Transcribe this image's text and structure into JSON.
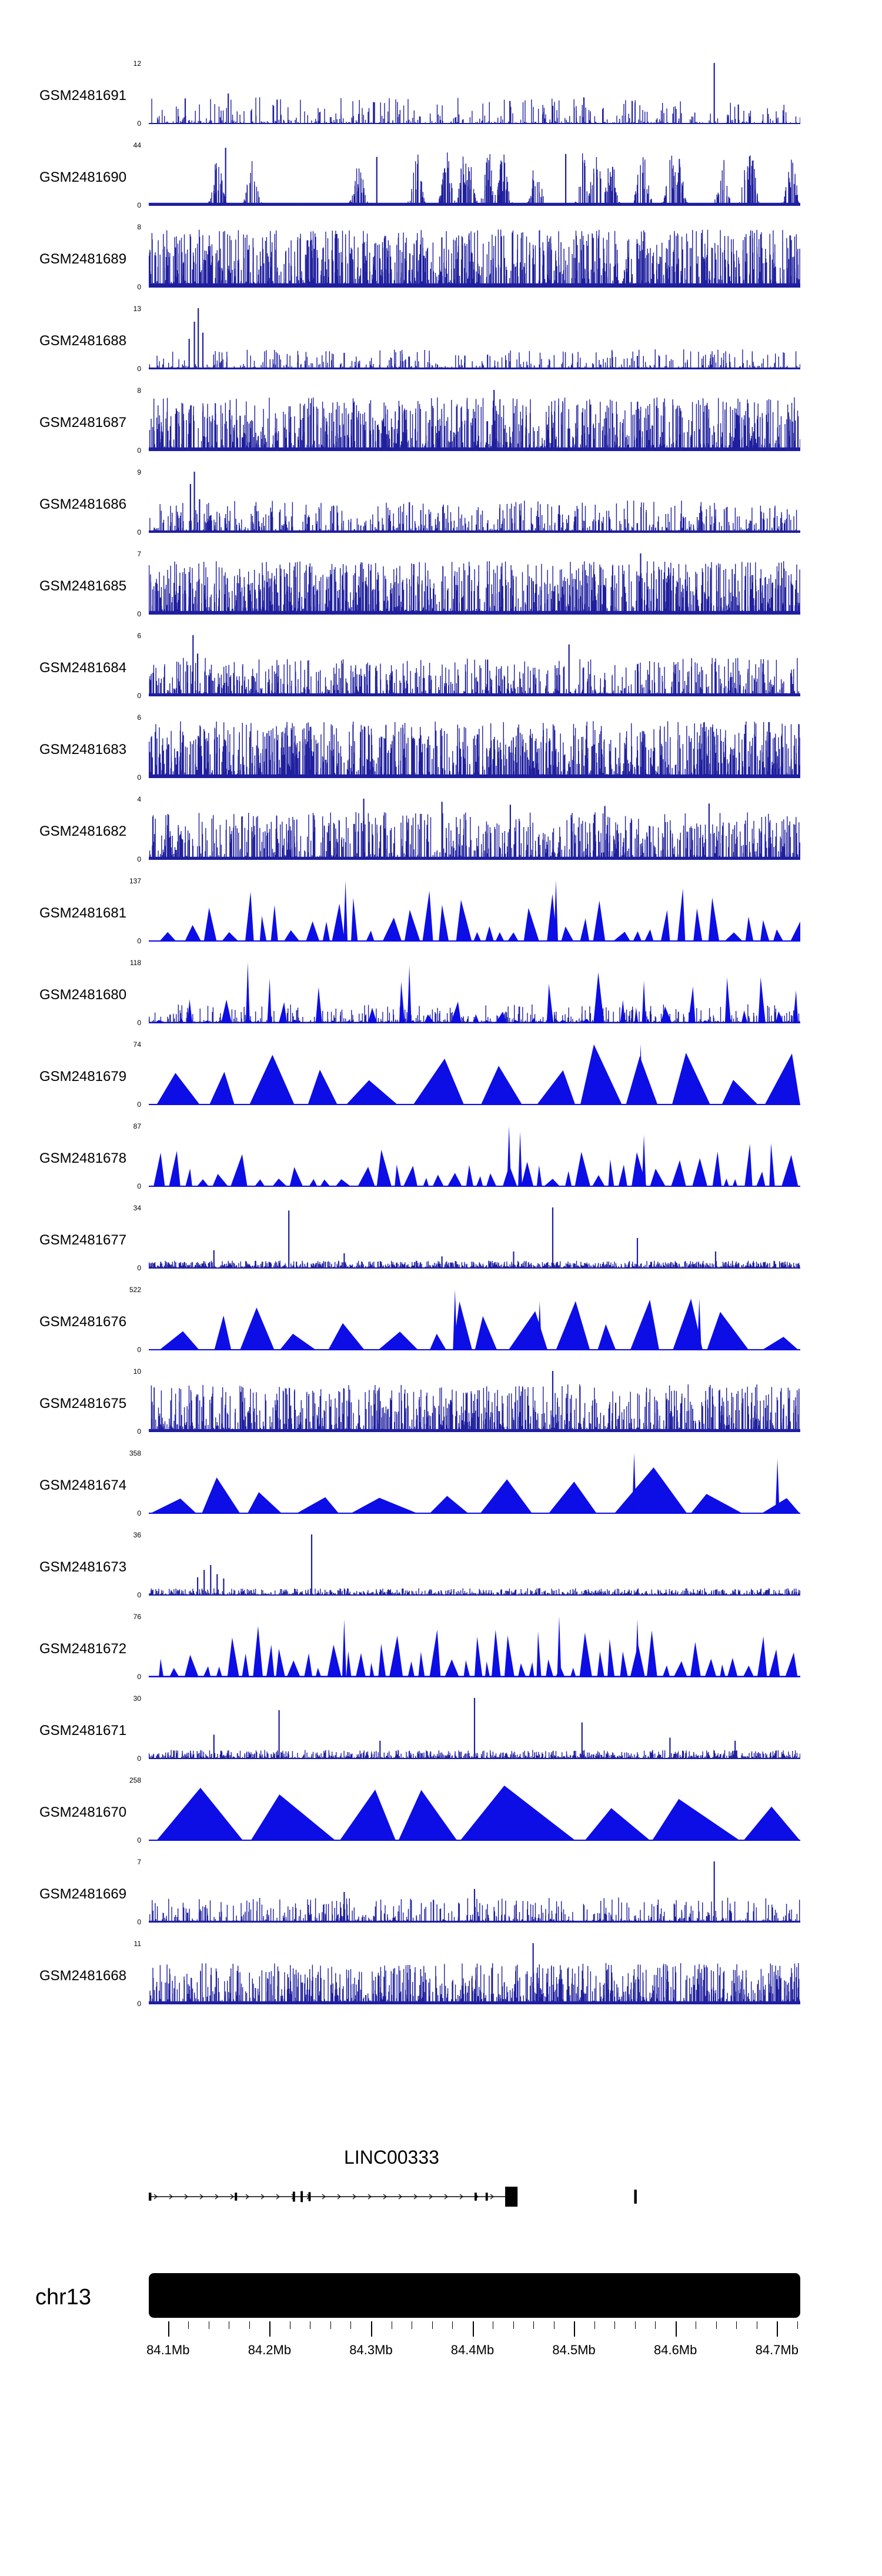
{
  "chart_data": {
    "type": "area",
    "description": "Genome-browser read-coverage tracks for 24 GEO samples over chr13 84.08-84.72 Mb, with LINC00333 gene model and chr13 ideogram",
    "region": {
      "chromosome": "chr13",
      "start_mb": 84.081,
      "end_mb": 84.723
    },
    "colors": {
      "bars": "#1f1f9e",
      "peaks": "#0d0de6",
      "gene": "#000000",
      "ideogram": "#000000"
    },
    "tracks": [
      {
        "label": "GSM2481691",
        "ymax": "12",
        "ymin": "0",
        "seed": 101,
        "base": 0.018,
        "bars": {
          "n": 430,
          "pow": 3.2,
          "hmax": 0.42
        },
        "spikes": [
          [
            0.056,
            0.42
          ],
          [
            0.122,
            0.5
          ],
          [
            0.197,
            0.4
          ],
          [
            0.345,
            0.36
          ],
          [
            0.62,
            0.3
          ],
          [
            0.742,
            0.38
          ],
          [
            0.868,
            1.0
          ],
          [
            0.905,
            0.32
          ]
        ]
      },
      {
        "label": "GSM2481690",
        "ymax": "44",
        "ymin": "0",
        "seed": 102,
        "base": 0.05,
        "cluster": {
          "n": 950,
          "k": 26,
          "w": 9,
          "hmax": 0.88
        },
        "spikes": [
          [
            0.118,
            0.95
          ],
          [
            0.35,
            0.8
          ],
          [
            0.64,
            0.85
          ]
        ]
      },
      {
        "label": "GSM2481689",
        "ymax": "8",
        "ymin": "0",
        "seed": 103,
        "base": 0.07,
        "bars": {
          "n": 1250,
          "pow": 1.6,
          "hmax": 0.92
        },
        "spikes": []
      },
      {
        "label": "GSM2481688",
        "ymax": "13",
        "ymin": "0",
        "seed": 104,
        "base": 0.03,
        "bars": {
          "n": 520,
          "pow": 3.0,
          "hmax": 0.3
        },
        "spikes": [
          [
            0.062,
            0.5
          ],
          [
            0.07,
            0.78
          ],
          [
            0.076,
            1.0
          ],
          [
            0.083,
            0.6
          ],
          [
            0.3,
            0.27
          ],
          [
            0.52,
            0.24
          ],
          [
            0.75,
            0.22
          ]
        ]
      },
      {
        "label": "GSM2481687",
        "ymax": "8",
        "ymin": "0",
        "seed": 105,
        "base": 0.06,
        "bars": {
          "n": 1150,
          "pow": 1.8,
          "hmax": 0.85
        },
        "spikes": [
          [
            0.53,
            1.0
          ]
        ]
      },
      {
        "label": "GSM2481686",
        "ymax": "9",
        "ymin": "0",
        "seed": 106,
        "base": 0.04,
        "bars": {
          "n": 760,
          "pow": 2.6,
          "hmax": 0.5
        },
        "spikes": [
          [
            0.064,
            0.8
          ],
          [
            0.07,
            1.0
          ],
          [
            0.078,
            0.55
          ],
          [
            0.4,
            0.5
          ],
          [
            0.63,
            0.45
          ]
        ]
      },
      {
        "label": "GSM2481685",
        "ymax": "7",
        "ymin": "0",
        "seed": 107,
        "base": 0.06,
        "bars": {
          "n": 1250,
          "pow": 1.7,
          "hmax": 0.85
        },
        "spikes": [
          [
            0.755,
            1.0
          ]
        ]
      },
      {
        "label": "GSM2481684",
        "ymax": "6",
        "ymin": "0",
        "seed": 108,
        "base": 0.05,
        "bars": {
          "n": 860,
          "pow": 2.2,
          "hmax": 0.6
        },
        "spikes": [
          [
            0.068,
            1.0
          ],
          [
            0.075,
            0.7
          ],
          [
            0.52,
            0.6
          ],
          [
            0.645,
            0.85
          ]
        ]
      },
      {
        "label": "GSM2481683",
        "ymax": "6",
        "ymin": "0",
        "seed": 109,
        "base": 0.06,
        "bars": {
          "n": 1250,
          "pow": 1.6,
          "hmax": 0.9
        },
        "spikes": []
      },
      {
        "label": "GSM2481682",
        "ymax": "4",
        "ymin": "0",
        "seed": 110,
        "base": 0.05,
        "bars": {
          "n": 1050,
          "pow": 2.0,
          "hmax": 0.75
        },
        "spikes": [
          [
            0.33,
            1.0
          ],
          [
            0.45,
            0.95
          ],
          [
            0.555,
            0.9
          ],
          [
            0.7,
            0.88
          ],
          [
            0.86,
            0.92
          ]
        ]
      },
      {
        "label": "GSM2481681",
        "ymax": "137",
        "ymin": "0",
        "seed": 111,
        "base": 0.02,
        "peaks": {
          "wmin": 10,
          "wmax": 34,
          "gmin": 2,
          "gmax": 14,
          "hmin": 0.15,
          "hmax": 1.0,
          "pow": 2.2
        },
        "spikes": [
          [
            0.302,
            1.0
          ],
          [
            0.625,
            1.0
          ]
        ]
      },
      {
        "label": "GSM2481680",
        "ymax": "118",
        "ymin": "0",
        "seed": 112,
        "base": 0.025,
        "bars": {
          "n": 550,
          "pow": 2.8,
          "hmax": 0.28
        },
        "peaks": {
          "wmin": 6,
          "wmax": 20,
          "gmin": 4,
          "gmax": 28,
          "hmin": 0.05,
          "hmax": 0.85,
          "pow": 3.0
        },
        "spikes": [
          [
            0.152,
            1.0,
            "t"
          ],
          [
            0.4,
            0.95,
            "t"
          ],
          [
            0.76,
            0.7,
            "t"
          ]
        ]
      },
      {
        "label": "GSM2481679",
        "ymax": "74",
        "ymin": "0",
        "seed": 113,
        "base": 0.02,
        "peaks": {
          "wmin": 36,
          "wmax": 90,
          "gmin": 4,
          "gmax": 30,
          "hmin": 0.3,
          "hmax": 1.0,
          "pow": 1.5
        },
        "spikes": [
          [
            0.755,
            1.0
          ]
        ]
      },
      {
        "label": "GSM2481678",
        "ymax": "87",
        "ymin": "0",
        "seed": 114,
        "base": 0.02,
        "peaks": {
          "wmin": 9,
          "wmax": 30,
          "gmin": 2,
          "gmax": 12,
          "hmin": 0.12,
          "hmax": 0.8,
          "pow": 1.8
        },
        "spikes": [
          [
            0.553,
            1.0
          ],
          [
            0.57,
            0.9
          ],
          [
            0.76,
            0.85
          ]
        ]
      },
      {
        "label": "GSM2481677",
        "ymax": "34",
        "ymin": "0",
        "seed": 115,
        "base": 0.02,
        "bars": {
          "n": 1250,
          "pow": 2.2,
          "hmax": 0.1
        },
        "spikes": [
          [
            0.1,
            0.3
          ],
          [
            0.215,
            0.95
          ],
          [
            0.3,
            0.25
          ],
          [
            0.45,
            0.2
          ],
          [
            0.56,
            0.28
          ],
          [
            0.62,
            1.0
          ],
          [
            0.75,
            0.5
          ],
          [
            0.87,
            0.28
          ]
        ]
      },
      {
        "label": "GSM2481676",
        "ymax": "522",
        "ymin": "0",
        "seed": 116,
        "base": 0.02,
        "peaks": {
          "wmin": 28,
          "wmax": 75,
          "gmin": 4,
          "gmax": 26,
          "hmin": 0.2,
          "hmax": 0.85,
          "pow": 1.6
        },
        "spikes": [
          [
            0.47,
            1.0
          ],
          [
            0.6,
            0.8
          ],
          [
            0.845,
            0.85
          ]
        ]
      },
      {
        "label": "GSM2481675",
        "ymax": "10",
        "ymin": "0",
        "seed": 117,
        "base": 0.05,
        "bars": {
          "n": 1100,
          "pow": 2.0,
          "hmax": 0.75
        },
        "spikes": [
          [
            0.62,
            1.0
          ]
        ]
      },
      {
        "label": "GSM2481674",
        "ymax": "358",
        "ymin": "0",
        "seed": 118,
        "base": 0.02,
        "peaks": {
          "wmin": 55,
          "wmax": 130,
          "gmin": 4,
          "gmax": 30,
          "hmin": 0.25,
          "hmax": 0.8,
          "pow": 1.4
        },
        "spikes": [
          [
            0.745,
            1.0
          ],
          [
            0.965,
            0.9
          ]
        ]
      },
      {
        "label": "GSM2481673",
        "ymax": "36",
        "ymin": "0",
        "seed": 119,
        "base": 0.018,
        "bars": {
          "n": 900,
          "pow": 2.4,
          "hmax": 0.09
        },
        "spikes": [
          [
            0.075,
            0.3
          ],
          [
            0.085,
            0.42
          ],
          [
            0.095,
            0.5
          ],
          [
            0.105,
            0.35
          ],
          [
            0.115,
            0.28
          ],
          [
            0.25,
            1.0
          ],
          [
            0.6,
            0.12
          ],
          [
            0.75,
            0.1
          ],
          [
            0.9,
            0.1
          ]
        ]
      },
      {
        "label": "GSM2481672",
        "ymax": "76",
        "ymin": "0",
        "seed": 120,
        "base": 0.025,
        "peaks": {
          "wmin": 8,
          "wmax": 26,
          "gmin": 2,
          "gmax": 10,
          "hmin": 0.15,
          "hmax": 0.85,
          "pow": 1.9
        },
        "spikes": [
          [
            0.3,
            0.95
          ],
          [
            0.63,
            1.0
          ],
          [
            0.75,
            0.95
          ]
        ]
      },
      {
        "label": "GSM2481671",
        "ymax": "30",
        "ymin": "0",
        "seed": 121,
        "base": 0.02,
        "bars": {
          "n": 1000,
          "pow": 2.2,
          "hmax": 0.12
        },
        "spikes": [
          [
            0.1,
            0.4
          ],
          [
            0.2,
            0.8
          ],
          [
            0.355,
            0.3
          ],
          [
            0.5,
            1.0
          ],
          [
            0.665,
            0.6
          ],
          [
            0.8,
            0.35
          ],
          [
            0.9,
            0.3
          ]
        ]
      },
      {
        "label": "GSM2481670",
        "ymax": "258",
        "ymin": "0",
        "seed": 122,
        "base": 0.02,
        "peaks": {
          "wmin": 90,
          "wmax": 230,
          "gmin": 2,
          "gmax": 16,
          "hmin": 0.5,
          "hmax": 1.0,
          "pow": 1.1
        },
        "spikes": []
      },
      {
        "label": "GSM2481669",
        "ymax": "7",
        "ymin": "0",
        "seed": 123,
        "base": 0.03,
        "bars": {
          "n": 640,
          "pow": 2.6,
          "hmax": 0.38
        },
        "spikes": [
          [
            0.3,
            0.5
          ],
          [
            0.5,
            0.55
          ],
          [
            0.868,
            1.0
          ]
        ]
      },
      {
        "label": "GSM2481668",
        "ymax": "11",
        "ymin": "0",
        "seed": 124,
        "base": 0.05,
        "bars": {
          "n": 1100,
          "pow": 2.0,
          "hmax": 0.65
        },
        "spikes": [
          [
            0.59,
            1.0
          ]
        ]
      }
    ],
    "gene_track": {
      "label": "LINC00333",
      "label_center_frac": 0.373,
      "line": {
        "x1": 0.0,
        "x2": 0.566
      },
      "arrow_spacing_px": 26,
      "exons": [
        {
          "x": 0.0,
          "w": 0.004,
          "h": 0.4
        },
        {
          "x": 0.132,
          "w": 0.0035,
          "h": 0.4
        },
        {
          "x": 0.221,
          "w": 0.0035,
          "h": 0.5
        },
        {
          "x": 0.233,
          "w": 0.0035,
          "h": 0.55
        },
        {
          "x": 0.245,
          "w": 0.0035,
          "h": 0.45
        },
        {
          "x": 0.5,
          "w": 0.0035,
          "h": 0.4
        },
        {
          "x": 0.517,
          "w": 0.0035,
          "h": 0.4
        },
        {
          "x": 0.547,
          "w": 0.019,
          "h": 1.0
        },
        {
          "x": 0.745,
          "w": 0.004,
          "h": 0.7
        }
      ]
    },
    "chromosome_label": "chr13",
    "x_axis": {
      "xlim": [
        84.081,
        84.723
      ],
      "major_ticks": [
        84.1,
        84.2,
        84.3,
        84.4,
        84.5,
        84.6,
        84.7
      ],
      "tick_labels": [
        "84.1Mb",
        "84.2Mb",
        "84.3Mb",
        "84.4Mb",
        "84.5Mb",
        "84.6Mb",
        "84.7Mb"
      ],
      "minor_step": 0.02
    }
  }
}
